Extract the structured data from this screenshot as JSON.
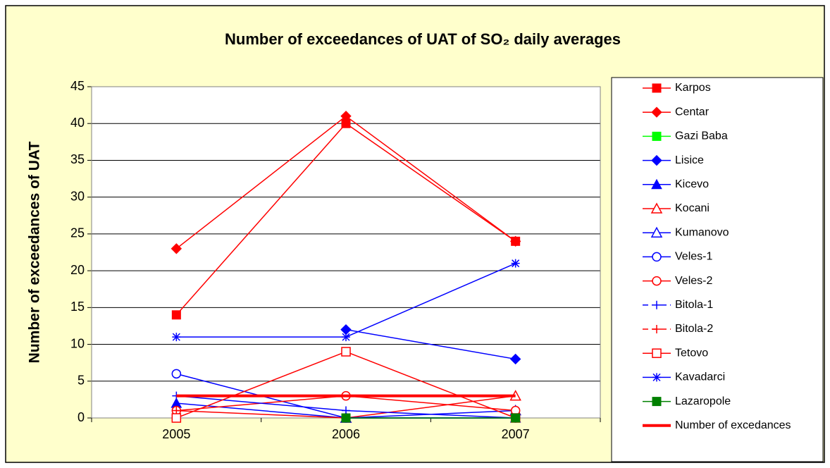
{
  "chart_data": {
    "type": "line",
    "title": "Number of exceedances of UAT of SO₂ daily averages",
    "y_label": "Number of exceedances of UAT",
    "categories": [
      "2005",
      "2006",
      "2007"
    ],
    "ylim": [
      0,
      45
    ],
    "yticks": [
      0,
      5,
      10,
      15,
      20,
      25,
      30,
      35,
      40,
      45
    ],
    "grid": true,
    "legend": "right",
    "series": [
      {
        "name": "Karpos",
        "color": "#ff0000",
        "marker": "square",
        "values": [
          14,
          40,
          24
        ]
      },
      {
        "name": "Centar",
        "color": "#ff0000",
        "marker": "diamond",
        "values": [
          23,
          41,
          24
        ]
      },
      {
        "name": "Gazi Baba",
        "color": "#00ff00",
        "marker": "square",
        "values": [
          null,
          0,
          0
        ]
      },
      {
        "name": "Lisice",
        "color": "#0000ff",
        "marker": "diamond",
        "values": [
          null,
          12,
          8
        ]
      },
      {
        "name": "Kicevo",
        "color": "#0000ff",
        "marker": "triangle",
        "values": [
          2,
          0,
          0
        ]
      },
      {
        "name": "Kocani",
        "color": "#ff0000",
        "marker": "triangle-open",
        "values": [
          null,
          0,
          3
        ]
      },
      {
        "name": "Kumanovo",
        "color": "#0000ff",
        "marker": "triangle-open",
        "values": [
          null,
          0,
          1
        ]
      },
      {
        "name": "Veles-1",
        "color": "#0000ff",
        "marker": "circle-open",
        "values": [
          6,
          0,
          0
        ]
      },
      {
        "name": "Veles-2",
        "color": "#ff0000",
        "marker": "circle-open",
        "values": [
          1,
          3,
          1
        ]
      },
      {
        "name": "Bitola-1",
        "color": "#0000ff",
        "marker": "plus",
        "dashed": true,
        "values": [
          3,
          1,
          0
        ]
      },
      {
        "name": "Bitola-2",
        "color": "#ff0000",
        "marker": "plus",
        "dashed": true,
        "values": [
          1,
          0,
          null
        ]
      },
      {
        "name": "Tetovo",
        "color": "#ff0000",
        "marker": "square-open",
        "values": [
          0,
          9,
          0
        ]
      },
      {
        "name": "Kavadarci",
        "color": "#0000ff",
        "marker": "asterisk",
        "values": [
          11,
          11,
          21
        ]
      },
      {
        "name": "Lazaropole",
        "color": "#008000",
        "marker": "square",
        "values": [
          null,
          0,
          0
        ]
      },
      {
        "name": "Number of excedances",
        "color": "#ff0000",
        "marker": "none",
        "width": 4,
        "values": [
          3,
          3,
          3
        ]
      }
    ]
  }
}
